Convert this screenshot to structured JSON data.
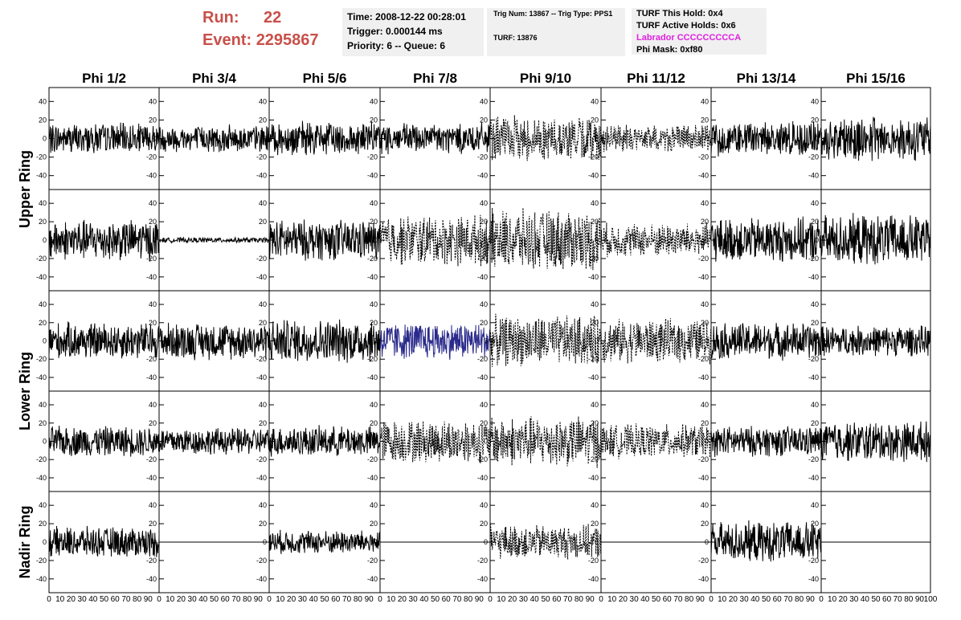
{
  "header": {
    "run_label": "Run:",
    "run_value": "22",
    "event_label": "Event:",
    "event_value": "2295867"
  },
  "info_box_1": {
    "time": "Time: 2008-12-22 00:28:01",
    "trigger": "Trigger: 0.000144 ms",
    "priority": "Priority: 6 -- Queue: 6"
  },
  "info_box_2": {
    "trig": "Trig Num: 13867 -- Trig Type: PPS1",
    "turf": "TURF: 13876"
  },
  "info_box_3": {
    "this_hold": "TURF This Hold: 0x4",
    "active_holds": "TURF Active Holds: 0x6",
    "labrador": "Labrador CCCCCCCCCA",
    "phi_mask": "Phi Mask: 0xf80"
  },
  "colors": {
    "header_red": "#c8504a",
    "labrador_magenta": "#e020e0",
    "highlight_trace": "#2a2a8c",
    "trace": "#000000",
    "info_bg": "#f0f0f0"
  },
  "chart_data": {
    "type": "line",
    "columns": [
      "Phi 1/2",
      "Phi 3/4",
      "Phi 5/6",
      "Phi 7/8",
      "Phi 9/10",
      "Phi 11/12",
      "Phi 13/14",
      "Phi 15/16"
    ],
    "row_labels": [
      "Upper Ring",
      "Lower Ring",
      "Nadir Ring"
    ],
    "row_label_spans": [
      [
        0,
        1
      ],
      [
        2,
        3
      ],
      [
        4,
        4
      ]
    ],
    "xlim": [
      0,
      100
    ],
    "ylim": [
      -55,
      55
    ],
    "yticks": [
      -40,
      -20,
      0,
      20,
      40
    ],
    "x_tick_labels": [
      "0",
      "10",
      "20",
      "30",
      "40",
      "50",
      "60",
      "70",
      "80",
      "90",
      "100"
    ],
    "waveform_amplitude": [
      [
        18,
        16,
        20,
        18,
        26,
        16,
        20,
        26
      ],
      [
        24,
        3,
        24,
        30,
        36,
        20,
        26,
        30
      ],
      [
        22,
        22,
        26,
        22,
        30,
        26,
        22,
        18
      ],
      [
        18,
        16,
        18,
        26,
        30,
        20,
        18,
        24
      ],
      [
        18,
        0,
        14,
        0,
        20,
        0,
        24,
        0
      ]
    ],
    "waveform_style": [
      [
        "solid",
        "solid",
        "solid",
        "solid",
        "dotted",
        "dotted",
        "solid",
        "solid"
      ],
      [
        "solid",
        "solid",
        "solid",
        "dotted",
        "dotted",
        "dotted",
        "solid",
        "solid"
      ],
      [
        "solid",
        "solid",
        "solid",
        "highlight",
        "dotted",
        "dotted",
        "solid",
        "solid"
      ],
      [
        "solid",
        "solid",
        "solid",
        "dotted",
        "dotted",
        "dotted",
        "solid",
        "solid"
      ],
      [
        "solid",
        "flat",
        "solid",
        "flat",
        "dotted",
        "flat",
        "solid",
        "flat"
      ]
    ]
  }
}
